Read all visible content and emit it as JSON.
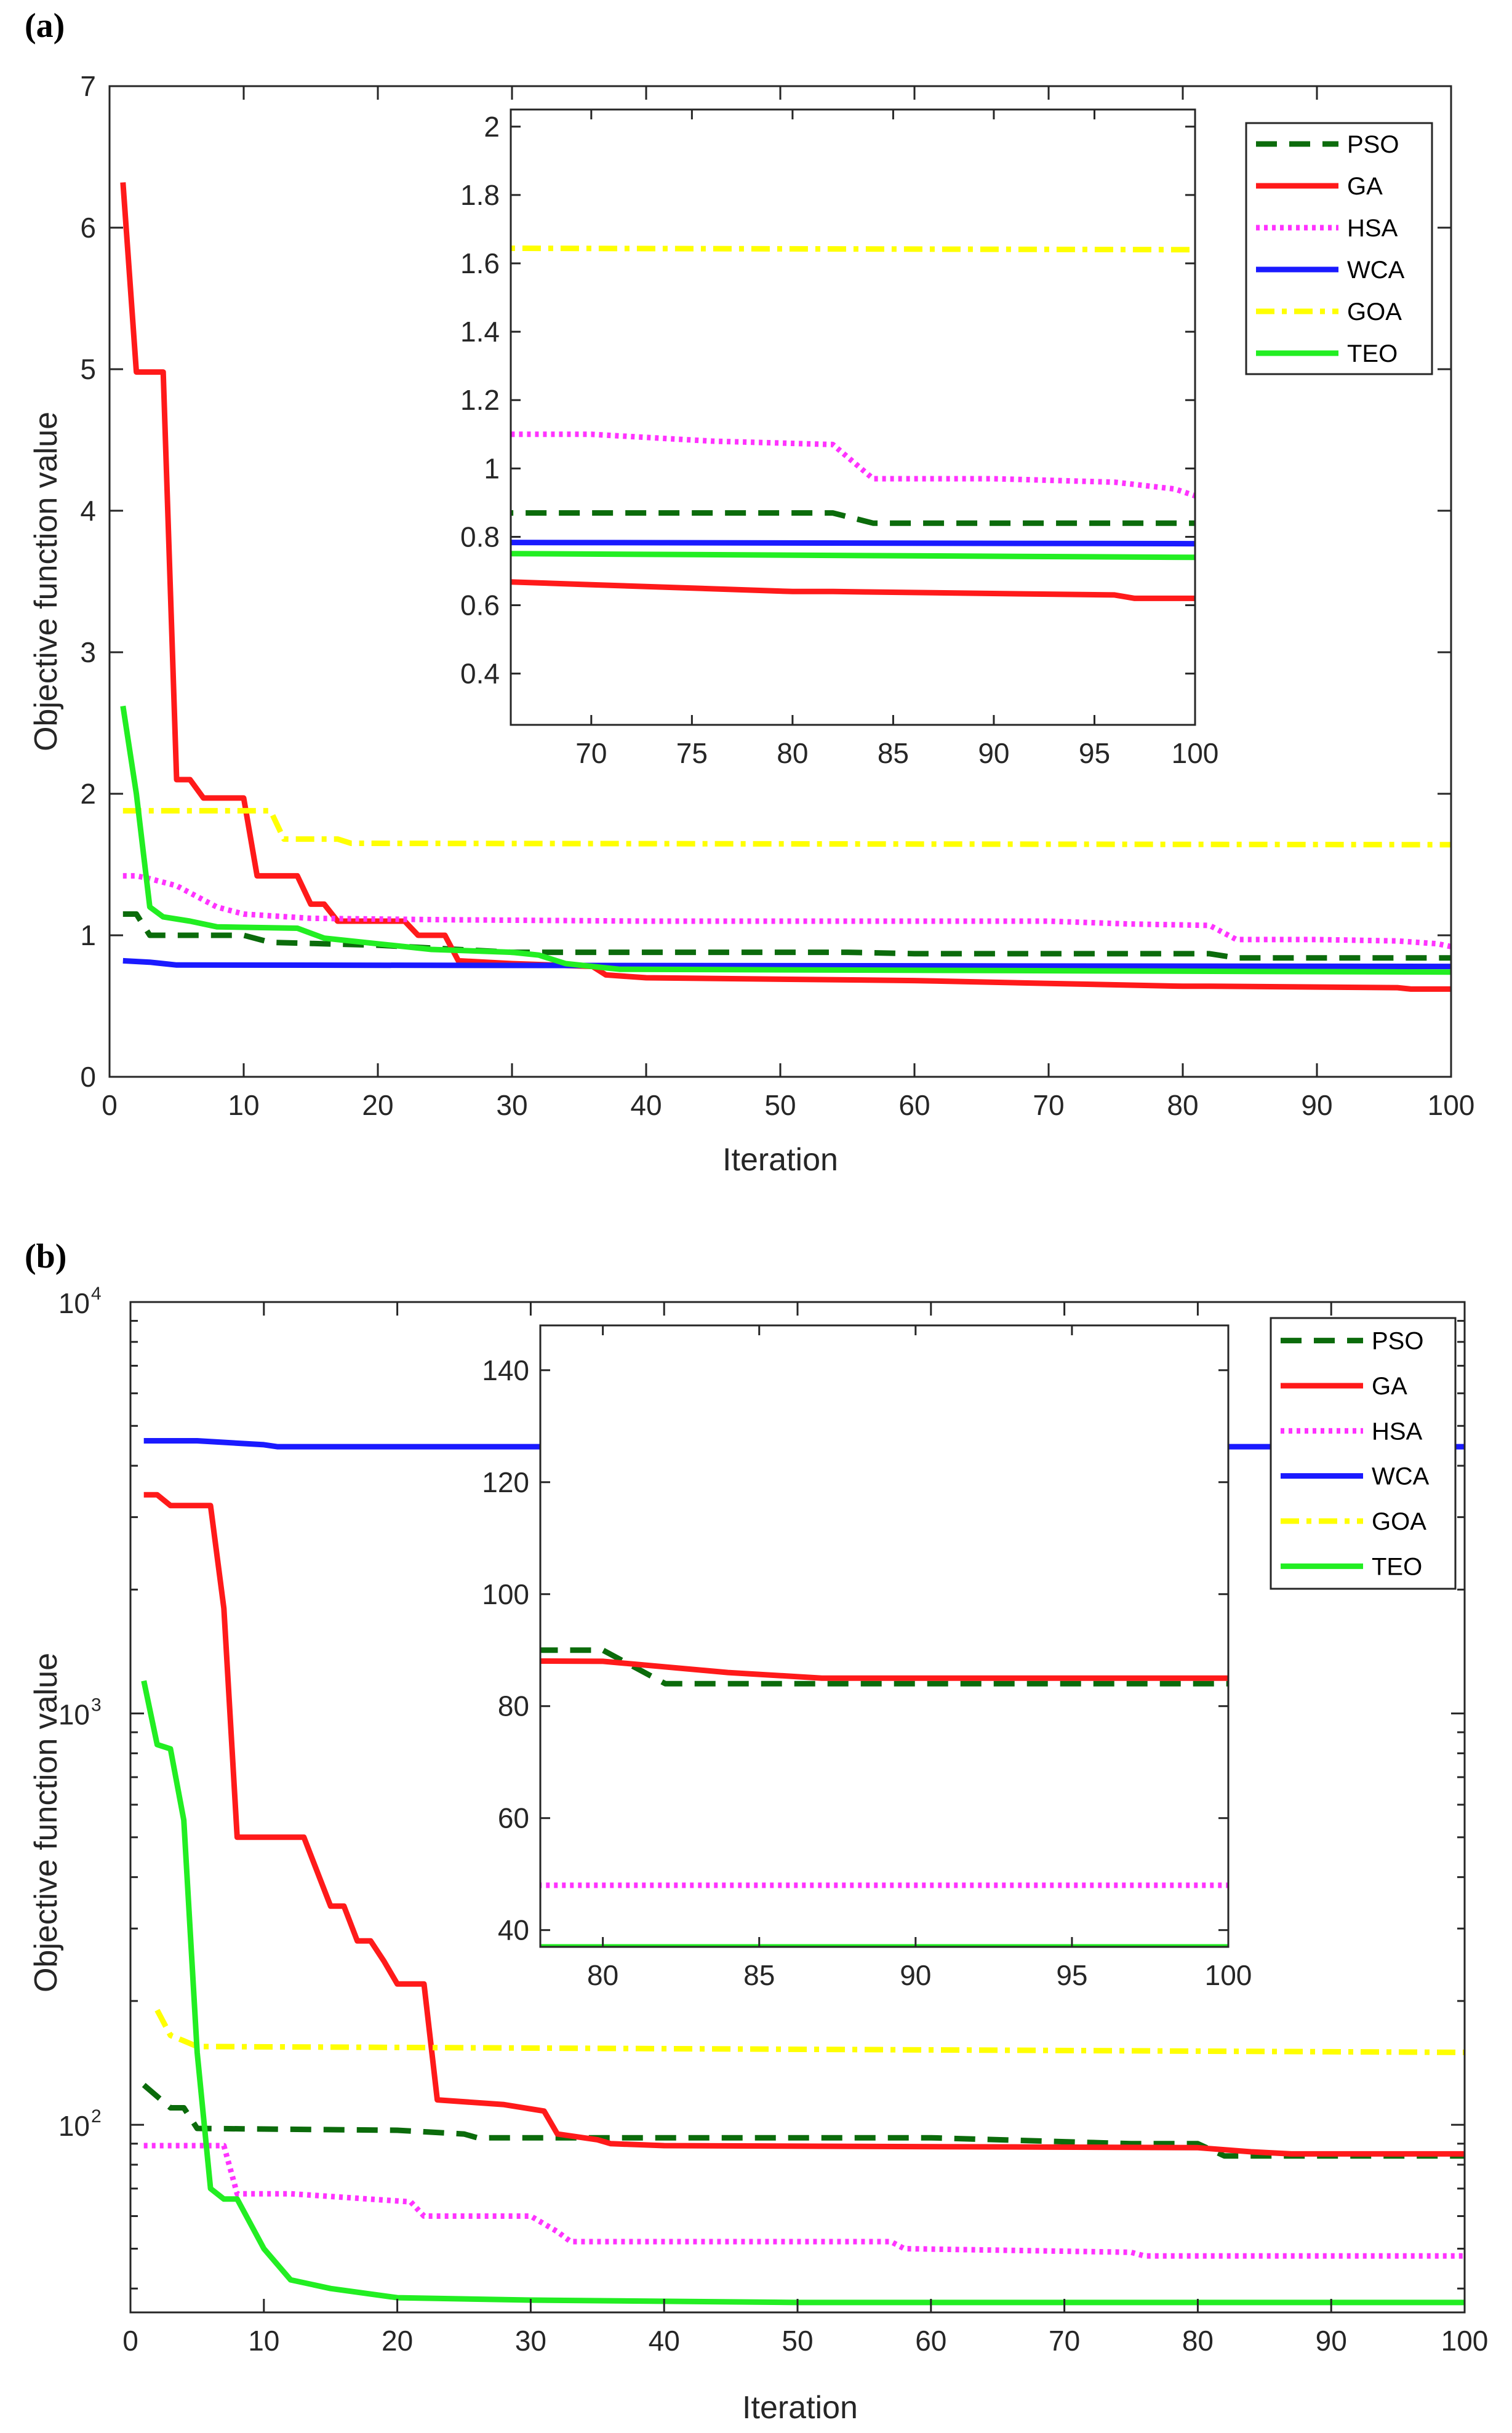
{
  "colors": {
    "PSO": "#0b6b0b",
    "GA": "#ff1a1a",
    "HSA": "#ff33ff",
    "WCA": "#1a1aff",
    "GOA": "#ffff00",
    "TEO": "#22ee22"
  },
  "chart_data": [
    {
      "panel_label": "(a)",
      "type": "line",
      "yscale": "linear",
      "xlabel": "Iteration",
      "ylabel": "Objective function value",
      "xlim": [
        0,
        100
      ],
      "ylim": [
        0,
        7
      ],
      "xticks": [
        0,
        10,
        20,
        30,
        40,
        50,
        60,
        70,
        80,
        90,
        100
      ],
      "yticks": [
        0,
        1,
        2,
        3,
        4,
        5,
        6,
        7
      ],
      "legend_position": "top-right",
      "series": [
        {
          "name": "PSO",
          "style": "dashed",
          "points": [
            [
              1,
              1.15
            ],
            [
              2,
              1.15
            ],
            [
              3,
              1.0
            ],
            [
              10,
              1.0
            ],
            [
              12,
              0.95
            ],
            [
              20,
              0.93
            ],
            [
              30,
              0.88
            ],
            [
              55,
              0.88
            ],
            [
              60,
              0.87
            ],
            [
              80,
              0.87
            ],
            [
              82,
              0.87
            ],
            [
              84,
              0.84
            ],
            [
              100,
              0.84
            ]
          ]
        },
        {
          "name": "GA",
          "style": "solid",
          "points": [
            [
              1,
              6.32
            ],
            [
              2,
              4.98
            ],
            [
              4,
              4.98
            ],
            [
              5,
              2.1
            ],
            [
              6,
              2.1
            ],
            [
              7,
              1.97
            ],
            [
              10,
              1.97
            ],
            [
              11,
              1.42
            ],
            [
              14,
              1.42
            ],
            [
              15,
              1.22
            ],
            [
              16,
              1.22
            ],
            [
              17,
              1.1
            ],
            [
              22,
              1.1
            ],
            [
              23,
              1.0
            ],
            [
              25,
              1.0
            ],
            [
              26,
              0.82
            ],
            [
              30,
              0.8
            ],
            [
              36,
              0.78
            ],
            [
              37,
              0.72
            ],
            [
              40,
              0.7
            ],
            [
              60,
              0.68
            ],
            [
              70,
              0.66
            ],
            [
              80,
              0.64
            ],
            [
              82,
              0.64
            ],
            [
              96,
              0.63
            ],
            [
              97,
              0.62
            ],
            [
              100,
              0.62
            ]
          ]
        },
        {
          "name": "HSA",
          "style": "dotted",
          "points": [
            [
              1,
              1.42
            ],
            [
              2,
              1.42
            ],
            [
              3,
              1.4
            ],
            [
              5,
              1.35
            ],
            [
              6,
              1.3
            ],
            [
              8,
              1.2
            ],
            [
              10,
              1.15
            ],
            [
              15,
              1.12
            ],
            [
              25,
              1.11
            ],
            [
              40,
              1.1
            ],
            [
              70,
              1.1
            ],
            [
              76,
              1.08
            ],
            [
              82,
              1.07
            ],
            [
              84,
              0.97
            ],
            [
              90,
              0.97
            ],
            [
              96,
              0.96
            ],
            [
              99,
              0.94
            ],
            [
              100,
              0.92
            ]
          ]
        },
        {
          "name": "WCA",
          "style": "solid",
          "points": [
            [
              1,
              0.82
            ],
            [
              3,
              0.81
            ],
            [
              5,
              0.79
            ],
            [
              100,
              0.78
            ]
          ]
        },
        {
          "name": "GOA",
          "style": "dashdot",
          "points": [
            [
              1,
              1.88
            ],
            [
              12,
              1.88
            ],
            [
              13,
              1.68
            ],
            [
              17,
              1.68
            ],
            [
              18,
              1.65
            ],
            [
              100,
              1.64
            ]
          ]
        },
        {
          "name": "TEO",
          "style": "solid",
          "points": [
            [
              1,
              2.62
            ],
            [
              2,
              2.0
            ],
            [
              3,
              1.2
            ],
            [
              4,
              1.13
            ],
            [
              6,
              1.1
            ],
            [
              8,
              1.06
            ],
            [
              14,
              1.05
            ],
            [
              16,
              0.98
            ],
            [
              20,
              0.94
            ],
            [
              24,
              0.9
            ],
            [
              30,
              0.88
            ],
            [
              32,
              0.86
            ],
            [
              34,
              0.8
            ],
            [
              36,
              0.78
            ],
            [
              38,
              0.76
            ],
            [
              100,
              0.74
            ]
          ]
        }
      ],
      "inset": {
        "xlim": [
          66,
          100
        ],
        "ylim": [
          0.25,
          2.05
        ],
        "xticks": [
          70,
          75,
          80,
          85,
          90,
          95,
          100
        ],
        "yticks": [
          0.4,
          0.6,
          0.8,
          1,
          1.2,
          1.4,
          1.6,
          1.8,
          2
        ],
        "ytick_labels": [
          "0.4",
          "0.6",
          "0.8",
          "1",
          "1.2",
          "1.4",
          "1.6",
          "1.8",
          "2"
        ]
      }
    },
    {
      "panel_label": "(b)",
      "type": "line",
      "yscale": "log",
      "xlabel": "Iteration",
      "ylabel": "Objective function value",
      "xlim": [
        0,
        100
      ],
      "ylim": [
        35,
        10000
      ],
      "xticks": [
        0,
        10,
        20,
        30,
        40,
        50,
        60,
        70,
        80,
        90,
        100
      ],
      "ytick_labels": [
        {
          "value": 100,
          "base": "10",
          "exp": "2"
        },
        {
          "value": 1000,
          "base": "10",
          "exp": "3"
        },
        {
          "value": 10000,
          "base": "10",
          "exp": "4"
        }
      ],
      "legend_position": "top-right",
      "series": [
        {
          "name": "PSO",
          "style": "dashed",
          "points": [
            [
              1,
              125
            ],
            [
              3,
              110
            ],
            [
              4,
              110
            ],
            [
              5,
              98
            ],
            [
              20,
              97
            ],
            [
              25,
              95
            ],
            [
              26,
              93
            ],
            [
              60,
              93
            ],
            [
              75,
              90
            ],
            [
              80,
              90
            ],
            [
              82,
              84
            ],
            [
              100,
              84
            ]
          ]
        },
        {
          "name": "GA",
          "style": "solid",
          "points": [
            [
              1,
              3400
            ],
            [
              2,
              3400
            ],
            [
              3,
              3200
            ],
            [
              6,
              3200
            ],
            [
              7,
              1800
            ],
            [
              8,
              500
            ],
            [
              13,
              500
            ],
            [
              15,
              340
            ],
            [
              16,
              340
            ],
            [
              17,
              280
            ],
            [
              18,
              280
            ],
            [
              19,
              250
            ],
            [
              20,
              220
            ],
            [
              22,
              220
            ],
            [
              23,
              115
            ],
            [
              28,
              112
            ],
            [
              31,
              108
            ],
            [
              32,
              95
            ],
            [
              35,
              92
            ],
            [
              36,
              90
            ],
            [
              40,
              89
            ],
            [
              80,
              88
            ],
            [
              84,
              86
            ],
            [
              87,
              85
            ],
            [
              100,
              85
            ]
          ]
        },
        {
          "name": "HSA",
          "style": "dotted",
          "points": [
            [
              1,
              89
            ],
            [
              7,
              89
            ],
            [
              8,
              68
            ],
            [
              12,
              68
            ],
            [
              21,
              65
            ],
            [
              22,
              60
            ],
            [
              30,
              60
            ],
            [
              32,
              55
            ],
            [
              33,
              52
            ],
            [
              57,
              52
            ],
            [
              58,
              50
            ],
            [
              75,
              49
            ],
            [
              76,
              48
            ],
            [
              100,
              48
            ]
          ]
        },
        {
          "name": "WCA",
          "style": "solid",
          "points": [
            [
              1,
              4600
            ],
            [
              5,
              4600
            ],
            [
              10,
              4500
            ],
            [
              11,
              4450
            ],
            [
              100,
              4450
            ]
          ]
        },
        {
          "name": "GOA",
          "style": "dashdot",
          "points": [
            [
              2,
              190
            ],
            [
              3,
              165
            ],
            [
              4,
              160
            ],
            [
              5,
              155
            ],
            [
              100,
              150
            ]
          ]
        },
        {
          "name": "TEO",
          "style": "solid",
          "points": [
            [
              1,
              1200
            ],
            [
              2,
              840
            ],
            [
              3,
              820
            ],
            [
              4,
              550
            ],
            [
              5,
              150
            ],
            [
              6,
              70
            ],
            [
              7,
              66
            ],
            [
              8,
              66
            ],
            [
              10,
              50
            ],
            [
              12,
              42
            ],
            [
              15,
              40
            ],
            [
              20,
              38
            ],
            [
              30,
              37.5
            ],
            [
              50,
              37
            ],
            [
              100,
              37
            ]
          ]
        }
      ],
      "inset": {
        "xlim": [
          78,
          100
        ],
        "ylim": [
          37,
          148
        ],
        "xticks": [
          80,
          85,
          90,
          95,
          100
        ],
        "yticks": [
          40,
          60,
          80,
          100,
          120,
          140
        ]
      }
    }
  ]
}
